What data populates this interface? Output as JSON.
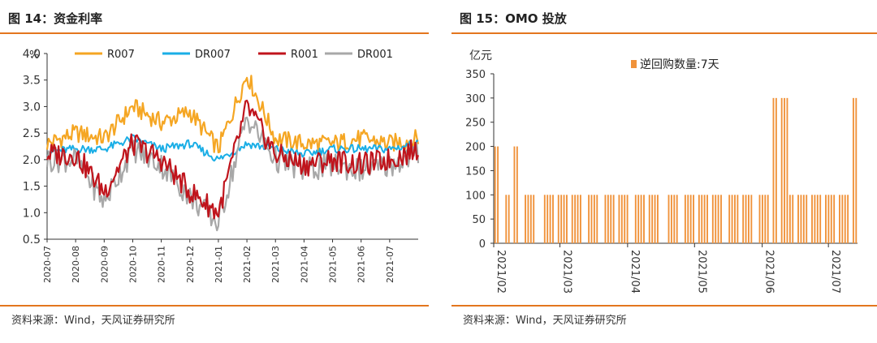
{
  "left": {
    "title": "图 14：资金利率",
    "source": "资料来源：Wind，天风证券研究所"
  },
  "right": {
    "title": "图 15：OMO 投放",
    "source": "资料来源：Wind，天风证券研究所"
  },
  "colors": {
    "accent": "#E3761E",
    "r007": "#F5A623",
    "dr007": "#1AAEE6",
    "r001": "#C0141C",
    "dr001": "#A8A8A8",
    "bar": "#F0923A"
  },
  "chart_data": [
    {
      "type": "line",
      "ylabel": "%",
      "ylim": [
        0.5,
        4.0
      ],
      "yticks": [
        "0.5",
        "1.0",
        "1.5",
        "2.0",
        "2.5",
        "3.0",
        "3.5",
        "4.0"
      ],
      "x_tick_labels": [
        "2020-07",
        "2020-08",
        "2020-09",
        "2020-10",
        "2020-11",
        "2020-12",
        "2021-01",
        "2021-02",
        "2021-03",
        "2021-04",
        "2021-05",
        "2021-06",
        "2021-07"
      ],
      "legend_position": "top",
      "x": [
        "2020-07",
        "2020-08",
        "2020-09",
        "2020-10",
        "2020-11",
        "2020-12",
        "2021-01",
        "2021-02",
        "2021-03",
        "2021-04",
        "2021-05",
        "2021-06",
        "2021-07",
        "2021-07-28"
      ],
      "series": [
        {
          "name": "R007",
          "values": [
            2.3,
            2.5,
            2.4,
            3.0,
            2.7,
            2.9,
            2.2,
            3.6,
            2.4,
            2.3,
            2.3,
            2.4,
            2.3,
            2.4
          ]
        },
        {
          "name": "DR007",
          "values": [
            2.15,
            2.2,
            2.2,
            2.4,
            2.2,
            2.3,
            2.0,
            2.3,
            2.2,
            2.1,
            2.2,
            2.2,
            2.2,
            2.3
          ]
        },
        {
          "name": "R001",
          "values": [
            2.1,
            2.1,
            1.4,
            2.3,
            2.0,
            1.4,
            1.0,
            3.0,
            2.1,
            1.9,
            2.0,
            1.9,
            2.0,
            2.2
          ]
        },
        {
          "name": "DR001",
          "values": [
            2.0,
            2.0,
            1.2,
            2.2,
            1.9,
            1.3,
            0.8,
            2.8,
            2.0,
            1.8,
            1.9,
            1.8,
            1.9,
            2.1
          ]
        }
      ]
    },
    {
      "type": "bar",
      "ylabel": "亿元",
      "ylim": [
        0,
        350
      ],
      "yticks": [
        "0",
        "50",
        "100",
        "150",
        "200",
        "250",
        "300",
        "350"
      ],
      "x_tick_labels": [
        "2021/02",
        "2021/03",
        "2021/04",
        "2021/05",
        "2021/06",
        "2021/07"
      ],
      "legend_position": "top",
      "series": [
        {
          "name": "逆回购数量:7天"
        }
      ],
      "values": [
        200,
        200,
        0,
        0,
        100,
        100,
        0,
        200,
        200,
        0,
        0,
        100,
        100,
        100,
        100,
        0,
        0,
        0,
        100,
        100,
        100,
        100,
        0,
        100,
        100,
        100,
        100,
        0,
        100,
        100,
        100,
        100,
        0,
        0,
        100,
        100,
        100,
        100,
        0,
        0,
        100,
        100,
        100,
        100,
        0,
        100,
        100,
        100,
        100,
        0,
        0,
        100,
        100,
        100,
        100,
        0,
        100,
        100,
        100,
        100,
        0,
        0,
        0,
        100,
        100,
        100,
        100,
        0,
        0,
        100,
        100,
        100,
        100,
        0,
        100,
        100,
        100,
        100,
        0,
        100,
        100,
        100,
        100,
        0,
        0,
        100,
        100,
        100,
        100,
        0,
        100,
        100,
        100,
        100,
        0,
        0,
        100,
        100,
        100,
        100,
        0,
        300,
        300,
        0,
        300,
        300,
        300,
        100,
        100,
        0,
        100,
        100,
        100,
        100,
        0,
        100,
        100,
        100,
        100,
        0,
        100,
        100,
        100,
        100,
        0,
        100,
        100,
        100,
        100,
        0,
        300,
        300
      ]
    }
  ]
}
